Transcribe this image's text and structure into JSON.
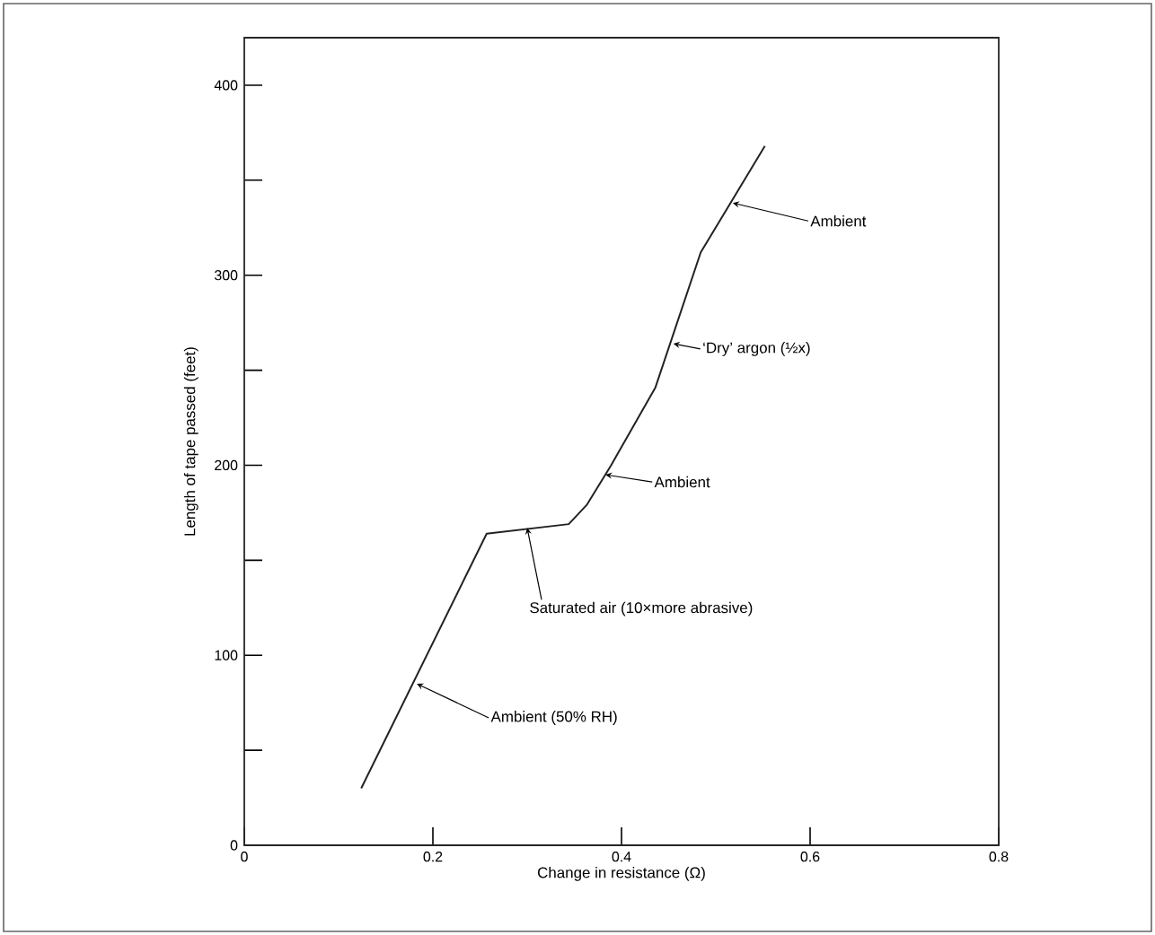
{
  "chart_data": {
    "type": "line",
    "xlabel": "Change in resistance (Ω)",
    "ylabel": "Length of tape passed (feet)",
    "x": [
      0.124,
      0.257,
      0.344,
      0.363,
      0.389,
      0.436,
      0.484,
      0.552
    ],
    "series": [
      {
        "color": "#222222",
        "values": [
          30,
          164,
          169,
          179,
          200,
          241,
          312,
          368
        ]
      }
    ],
    "xlim": [
      0,
      0.8
    ],
    "ylim": [
      0,
      425
    ],
    "xticks": [
      0,
      0.2,
      0.4,
      0.6,
      0.8
    ],
    "yticks": [
      0,
      {
        "value": 50,
        "label": null
      },
      100,
      {
        "value": 150,
        "label": null
      },
      200,
      {
        "value": 250,
        "label": null
      },
      300,
      {
        "value": 350,
        "label": null
      },
      400
    ],
    "annotations": [
      {
        "text": "Ambient",
        "x": 0.518,
        "y": 338
      },
      {
        "text": "‘Dry’ argon (½x)",
        "x": 0.455,
        "y": 264
      },
      {
        "text": "Ambient",
        "x": 0.383,
        "y": 195
      },
      {
        "text": "Saturated air (10×more abrasive)",
        "x": 0.3,
        "y": 167
      },
      {
        "text": "Ambient (50% RH)",
        "x": 0.183,
        "y": 85
      }
    ]
  }
}
